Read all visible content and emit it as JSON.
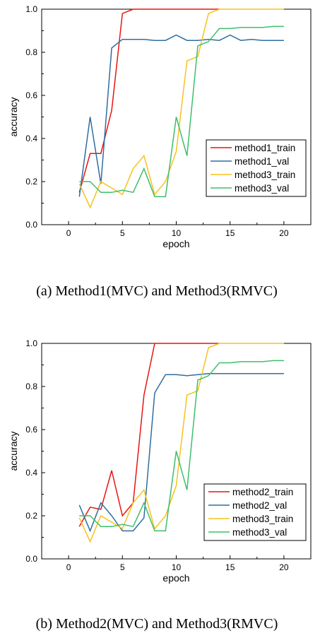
{
  "colors": {
    "red": "#e8140f",
    "blue": "#2f6ea0",
    "yellow": "#f6c21e",
    "green": "#3dbf6a"
  },
  "chart_data": [
    {
      "type": "line",
      "caption": "(a)  Method1(MVC) and Method3(RMVC)",
      "xlabel": "epoch",
      "ylabel": "accuracy",
      "xlim": [
        -2.5,
        22.5
      ],
      "ylim": [
        0.0,
        1.0
      ],
      "xticks": [
        "0",
        "5",
        "10",
        "15",
        "20"
      ],
      "yticks": [
        "0.0",
        "0.2",
        "0.4",
        "0.6",
        "0.8",
        "1.0"
      ],
      "legend_position": "lower-right",
      "x": [
        1,
        2,
        3,
        4,
        5,
        6,
        7,
        8,
        9,
        10,
        11,
        12,
        13,
        14,
        15,
        16,
        17,
        18,
        19,
        20
      ],
      "series": [
        {
          "name": "method1_train",
          "color": "red",
          "values": [
            0.15,
            0.33,
            0.33,
            0.53,
            0.98,
            1.0,
            1.0,
            1.0,
            1.0,
            1.0,
            1.0,
            1.0,
            1.0,
            1.0,
            null,
            null,
            null,
            null,
            null,
            null
          ]
        },
        {
          "name": "method1_val",
          "color": "blue",
          "values": [
            0.13,
            0.5,
            0.19,
            0.82,
            0.86,
            0.86,
            0.86,
            0.855,
            0.855,
            0.88,
            0.855,
            0.855,
            0.86,
            0.855,
            0.88,
            0.855,
            0.86,
            0.855,
            0.855,
            0.855
          ]
        },
        {
          "name": "method3_train",
          "color": "yellow",
          "values": [
            0.19,
            0.08,
            0.2,
            0.17,
            0.14,
            0.26,
            0.32,
            0.14,
            0.2,
            0.34,
            0.76,
            0.78,
            0.98,
            1.0,
            1.0,
            1.0,
            1.0,
            1.0,
            1.0,
            1.0
          ]
        },
        {
          "name": "method3_val",
          "color": "green",
          "values": [
            0.2,
            0.2,
            0.15,
            0.15,
            0.16,
            0.15,
            0.26,
            0.13,
            0.13,
            0.5,
            0.32,
            0.83,
            0.85,
            0.91,
            0.91,
            0.915,
            0.915,
            0.915,
            0.92,
            0.92
          ]
        }
      ]
    },
    {
      "type": "line",
      "caption": "(b)  Method2(MVC) and Method3(RMVC)",
      "xlabel": "epoch",
      "ylabel": "accuracy",
      "xlim": [
        -2.5,
        22.5
      ],
      "ylim": [
        0.0,
        1.0
      ],
      "xticks": [
        "0",
        "5",
        "10",
        "15",
        "20"
      ],
      "yticks": [
        "0.0",
        "0.2",
        "0.4",
        "0.6",
        "0.8",
        "1.0"
      ],
      "legend_position": "lower-right",
      "x": [
        1,
        2,
        3,
        4,
        5,
        6,
        7,
        8,
        9,
        10,
        11,
        12,
        13,
        14,
        15,
        16,
        17,
        18,
        19,
        20
      ],
      "series": [
        {
          "name": "method2_train",
          "color": "red",
          "values": [
            0.15,
            0.24,
            0.23,
            0.41,
            0.2,
            0.26,
            0.76,
            1.0,
            1.0,
            1.0,
            1.0,
            1.0,
            1.0,
            1.0,
            null,
            null,
            null,
            null,
            null,
            null
          ]
        },
        {
          "name": "method2_val",
          "color": "blue",
          "values": [
            0.25,
            0.13,
            0.26,
            0.2,
            0.13,
            0.13,
            0.19,
            0.77,
            0.855,
            0.855,
            0.85,
            0.855,
            0.86,
            0.86,
            0.86,
            0.86,
            0.86,
            0.86,
            0.86,
            0.86
          ]
        },
        {
          "name": "method3_train",
          "color": "yellow",
          "values": [
            0.19,
            0.08,
            0.2,
            0.17,
            0.14,
            0.26,
            0.32,
            0.14,
            0.2,
            0.34,
            0.76,
            0.78,
            0.98,
            1.0,
            1.0,
            1.0,
            1.0,
            1.0,
            1.0,
            1.0
          ]
        },
        {
          "name": "method3_val",
          "color": "green",
          "values": [
            0.2,
            0.2,
            0.15,
            0.15,
            0.16,
            0.15,
            0.26,
            0.13,
            0.13,
            0.5,
            0.32,
            0.83,
            0.85,
            0.91,
            0.91,
            0.915,
            0.915,
            0.915,
            0.92,
            0.92
          ]
        }
      ]
    }
  ]
}
